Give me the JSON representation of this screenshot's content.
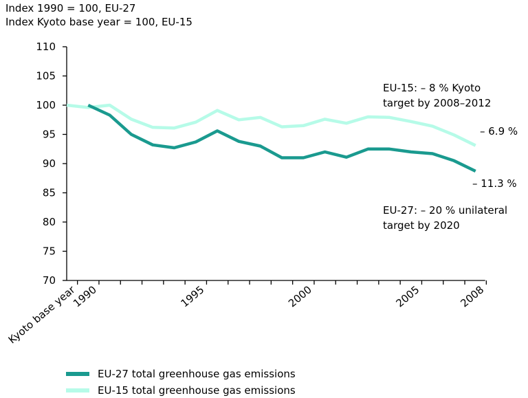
{
  "header": {
    "line1": "Index 1990 = 100, EU-27",
    "line2": "Index Kyoto base year = 100, EU-15"
  },
  "annotations": {
    "eu15_target": "EU-15: – 8 % Kyoto\ntarget by 2008–2012",
    "eu15_end": "– 6.9 %",
    "eu27_end": "– 11.3 %",
    "eu27_target": "EU-27: – 20 % unilateral\ntarget by 2020"
  },
  "legend": {
    "eu27": "EU-27 total greenhouse gas emissions",
    "eu15": "EU-15 total greenhouse gas emissions"
  },
  "colors": {
    "eu27": "#1a9a8f",
    "eu15": "#b6fbe8",
    "axis": "#000000"
  },
  "chart_data": {
    "type": "line",
    "title": "",
    "xlabel": "",
    "ylabel": "",
    "ylim": [
      70,
      110
    ],
    "yticks": [
      70,
      75,
      80,
      85,
      90,
      95,
      100,
      105,
      110
    ],
    "categories": [
      "Kyoto base year",
      "1990",
      "1991",
      "1992",
      "1993",
      "1994",
      "1995",
      "1996",
      "1997",
      "1998",
      "1999",
      "2000",
      "2001",
      "2002",
      "2003",
      "2004",
      "2005",
      "2006",
      "2007",
      "2008"
    ],
    "xtick_labels": [
      "Kyoto base year",
      "1990",
      "1995",
      "2000",
      "2005",
      "2008"
    ],
    "series": [
      {
        "name": "EU-27 total greenhouse gas emissions",
        "values": [
          null,
          100.0,
          98.3,
          95.0,
          93.2,
          92.7,
          93.7,
          95.6,
          93.8,
          93.0,
          91.0,
          91.0,
          92.0,
          91.1,
          92.5,
          92.5,
          92.0,
          91.7,
          90.5,
          88.7
        ]
      },
      {
        "name": "EU-15 total greenhouse gas emissions",
        "values": [
          100.0,
          99.6,
          100.0,
          97.6,
          96.2,
          96.1,
          97.1,
          99.1,
          97.5,
          97.9,
          96.3,
          96.5,
          97.6,
          96.9,
          98.0,
          97.9,
          97.2,
          96.4,
          94.9,
          93.1
        ]
      }
    ]
  }
}
